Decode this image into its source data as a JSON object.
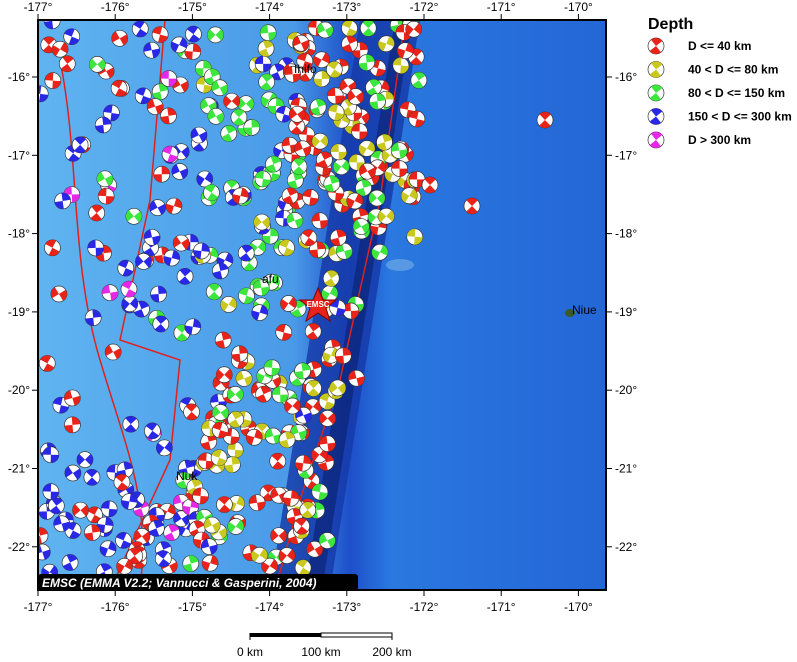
{
  "map": {
    "lon_labels": [
      "-177°",
      "-176°",
      "-175°",
      "-174°",
      "-173°",
      "-172°",
      "-171°",
      "-170°"
    ],
    "lat_labels": [
      "-16°",
      "-17°",
      "-18°",
      "-19°",
      "-20°",
      "-21°",
      "-22°"
    ],
    "places": [
      "Ihifo",
      "afu",
      "Niue",
      "Nuk"
    ],
    "star_label": "EMSC",
    "credit": "EMSC (EMMA V2.2; Vannucci & Gasperini, 2004)",
    "scale_labels": [
      "0 km",
      "100 km",
      "200 km"
    ]
  },
  "legend": {
    "title": "Depth",
    "items": [
      "D <= 40 km",
      "40 < D <= 80 km",
      "80 < D <= 150 km",
      "150 < D <= 300 km",
      "D > 300 km"
    ]
  }
}
